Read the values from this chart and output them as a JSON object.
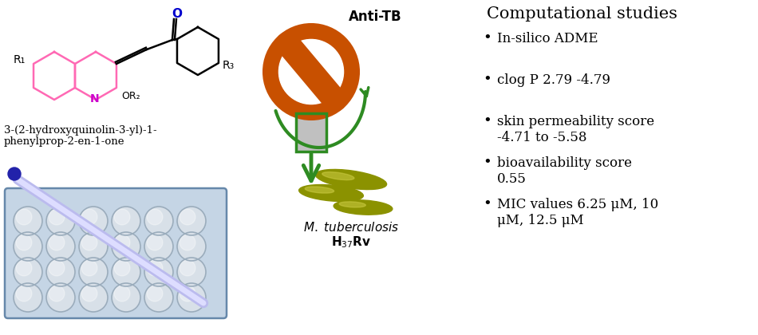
{
  "title": "Computational studies",
  "bullet_points": [
    "In-silico ADME",
    "clog P 2.79 -4.79",
    "skin permeability score\n-4.71 to -5.58",
    "bioavailability score\n0.55",
    "MIC values 6.25 μM, 10\nμM, 12.5 μM"
  ],
  "anti_tb_label": "Anti-TB",
  "compound_name_line1": "3-(2-hydroxyquinolin-3-yl)-1-",
  "compound_name_line2": "phenylprop-2-en-1-one",
  "bg_color": "#ffffff",
  "title_fontsize": 15,
  "bullet_fontsize": 12,
  "pink_color": "#FF69B4",
  "blue_color": "#0000CD",
  "magenta_color": "#CC00CC",
  "green_color": "#2E8B22",
  "orange_color": "#C85000",
  "plate_bg": "#C5D5E5",
  "plate_edge": "#6688AA",
  "well_color": "#D8E0E8",
  "well_edge": "#9AACBC",
  "pip_color": "#BBBBEE",
  "pip_light": "#DDDDFF",
  "bulb_color": "#2222AA",
  "bact_dark": "#6B7200",
  "bact_mid": "#8B9200",
  "bact_light": "#CCCC44"
}
